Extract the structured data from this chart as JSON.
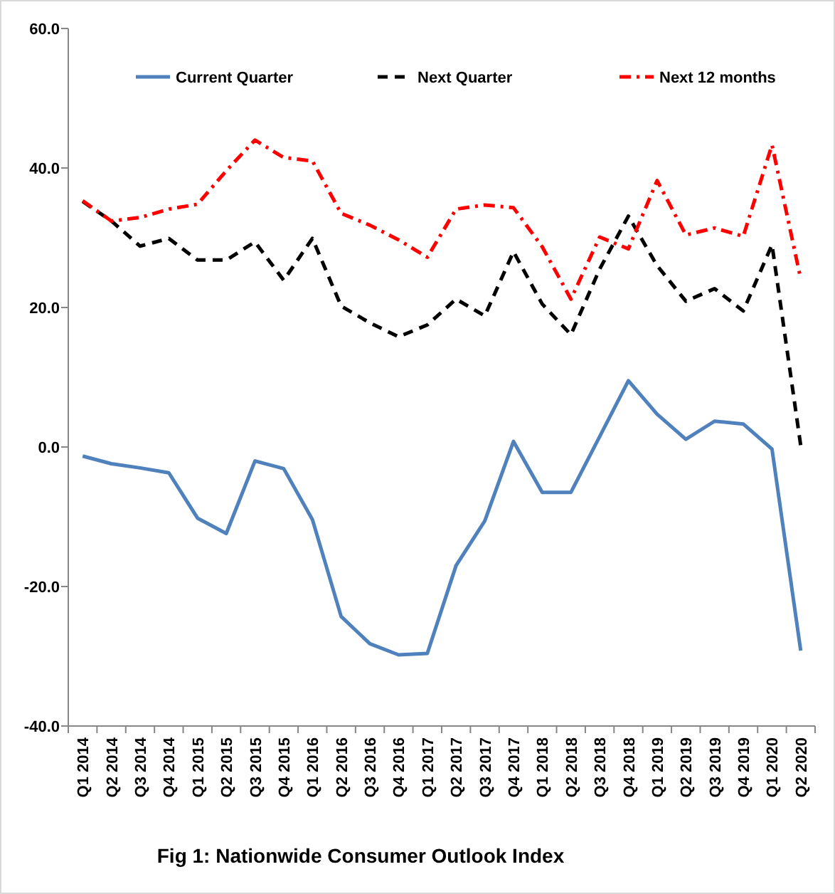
{
  "chart_data": {
    "type": "line",
    "title": "Fig 1: Nationwide Consumer Outlook Index",
    "categories": [
      "Q1 2014",
      "Q2 2014",
      "Q3 2014",
      "Q4 2014",
      "Q1 2015",
      "Q2 2015",
      "Q3 2015",
      "Q4 2015",
      "Q1 2016",
      "Q2 2016",
      "Q3 2016",
      "Q4 2016",
      "Q1 2017",
      "Q2 2017",
      "Q3 2017",
      "Q4 2017",
      "Q1 2018",
      "Q2 2018",
      "Q3 2018",
      "Q4 2018",
      "Q1 2019",
      "Q2 2019",
      "Q3 2019",
      "Q4 2019",
      "Q1 2020",
      "Q2 2020"
    ],
    "series": [
      {
        "name": "Current Quarter",
        "color": "#4f81bd",
        "line_style": "solid",
        "values": [
          -1.3,
          -2.4,
          -3.0,
          -3.7,
          -10.2,
          -12.4,
          -2.0,
          -3.1,
          -10.4,
          -24.3,
          -28.2,
          -29.8,
          -29.6,
          -17.0,
          -10.6,
          0.8,
          -6.5,
          -6.5,
          1.5,
          9.5,
          4.7,
          1.1,
          3.7,
          3.3,
          -0.3,
          -29.2
        ]
      },
      {
        "name": "Next Quarter",
        "color": "#000000",
        "line_style": "dashed",
        "values": [
          35.2,
          32.4,
          28.8,
          29.9,
          26.8,
          26.8,
          29.4,
          23.9,
          29.9,
          20.2,
          17.8,
          15.8,
          17.5,
          21.2,
          18.8,
          28.0,
          20.5,
          16.1,
          25.5,
          33.1,
          26.0,
          20.9,
          22.7,
          19.5,
          29.0,
          0.2
        ]
      },
      {
        "name": "Next 12 months",
        "color": "#ff0000",
        "line_style": "dashdot",
        "values": [
          35.3,
          32.4,
          32.9,
          34.1,
          34.8,
          39.6,
          44.0,
          41.5,
          41.0,
          33.5,
          31.8,
          29.7,
          27.2,
          34.1,
          34.7,
          34.3,
          28.7,
          21.2,
          30.1,
          28.4,
          38.2,
          30.4,
          31.4,
          30.2,
          43.3,
          24.1
        ]
      }
    ],
    "ylim": [
      -40,
      60
    ],
    "yticks": [
      {
        "value": -40,
        "label": "-40.0"
      },
      {
        "value": -20,
        "label": "-20.0"
      },
      {
        "value": 0,
        "label": "0.0"
      },
      {
        "value": 20,
        "label": "20.0"
      },
      {
        "value": 40,
        "label": "40.0"
      },
      {
        "value": 60,
        "label": "60.0"
      }
    ],
    "grid": false,
    "legend": "top",
    "marker": "none"
  }
}
